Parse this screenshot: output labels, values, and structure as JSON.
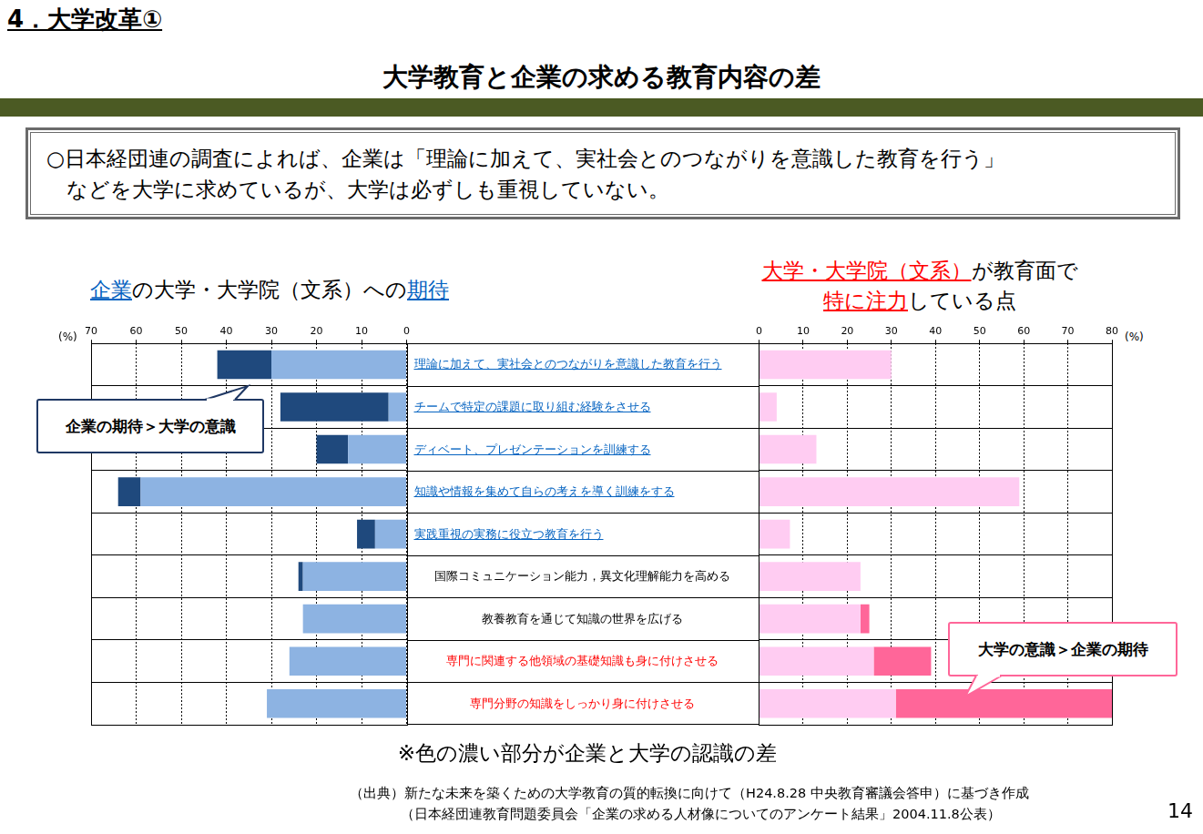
{
  "header": {
    "section": "4．大学改革①",
    "title": "大学教育と企業の求める教育内容の差"
  },
  "summary": [
    "○日本経団連の調査によれば、企業は「理論に加えて、実社会とのつながりを意識した教育を行う」",
    "などを大学に求めているが、大学は必ずしも重視していない。"
  ],
  "chart_titles": [
    [
      [
        {
          "text": "企業",
          "color": "#0563c1",
          "underline": true
        },
        {
          "text": "の大学・大学院（文系）への",
          "color": "#000000",
          "underline": false
        },
        {
          "text": "期待",
          "color": "#0563c1",
          "underline": true
        }
      ]
    ],
    [
      [
        {
          "text": "大学・大学院（文系）",
          "color": "#ff0000",
          "underline": true
        },
        {
          "text": "が教育面で",
          "color": "#000000",
          "underline": false
        }
      ],
      [
        {
          "text": "特に注力",
          "color": "#ff0000",
          "underline": true
        },
        {
          "text": "している点",
          "color": "#000000",
          "underline": false
        }
      ]
    ]
  ],
  "label_column": {
    "styles": [
      {
        "color": "#0563c1",
        "underline": true,
        "align": "left"
      },
      {
        "color": "#0563c1",
        "underline": true,
        "align": "left"
      },
      {
        "color": "#0563c1",
        "underline": true,
        "align": "left"
      },
      {
        "color": "#0563c1",
        "underline": true,
        "align": "left"
      },
      {
        "color": "#0563c1",
        "underline": true,
        "align": "left"
      },
      {
        "color": "#000000",
        "underline": false,
        "align": "center"
      },
      {
        "color": "#000000",
        "underline": false,
        "align": "center"
      },
      {
        "color": "#ff0000",
        "underline": false,
        "align": "center"
      },
      {
        "color": "#ff0000",
        "underline": false,
        "align": "center"
      }
    ]
  },
  "chart_data": [
    {
      "type": "bar",
      "orientation": "horizontal",
      "stacked": true,
      "grid": true,
      "categories": [
        "理論に加えて、実社会とのつながりを意識した教育を行う",
        "チームで特定の課題に取り組む経験をさせる",
        "ディベート、プレゼンテーションを訓練する",
        "知識や情報を集めて自らの考えを導く訓練をする",
        "実践重視の実務に役立つ教育を行う",
        "国際コミュニケーション能力，異文化理解能力を高める",
        "教養教育を通じて知識の世界を広げる",
        "専門に関連する他領域の基礎知識も身に付けさせる",
        "専門分野の知識をしっかり身に付けさせる"
      ],
      "series": [
        {
          "color": "#8db3e2",
          "values": [
            30,
            4,
            13,
            59,
            7,
            23,
            23,
            26,
            31
          ]
        },
        {
          "color": "#1f497d",
          "values": [
            12,
            24,
            7,
            5,
            4,
            1,
            0,
            0,
            0
          ]
        }
      ],
      "xlim": [
        70,
        0
      ],
      "xticks": [
        70,
        60,
        50,
        40,
        30,
        20,
        10,
        0
      ],
      "xlabel": "(%)",
      "annotations": [
        "企業の期待＞大学の意識"
      ]
    },
    {
      "type": "bar",
      "orientation": "horizontal",
      "stacked": true,
      "grid": true,
      "categories": [
        "理論に加えて、実社会とのつながりを意識した教育を行う",
        "チームで特定の課題に取り組む経験をさせる",
        "ディベート、プレゼンテーションを訓練する",
        "知識や情報を集めて自らの考えを導く訓練をする",
        "実践重視の実務に役立つ教育を行う",
        "国際コミュニケーション能力，異文化理解能力を高める",
        "教養教育を通じて知識の世界を広げる",
        "専門に関連する他領域の基礎知識も身に付けさせる",
        "専門分野の知識をしっかり身に付けさせる"
      ],
      "series": [
        {
          "color": "#ffccf2",
          "values": [
            30,
            4,
            13,
            59,
            7,
            23,
            23,
            26,
            31
          ]
        },
        {
          "color": "#ff6699",
          "values": [
            0,
            0,
            0,
            0,
            0,
            0,
            2,
            13,
            49
          ]
        }
      ],
      "xlim": [
        0,
        80
      ],
      "xticks": [
        0,
        10,
        20,
        30,
        40,
        50,
        60,
        70,
        80
      ],
      "xlabel": "(%)",
      "annotations": [
        "大学の意識＞企業の期待"
      ]
    }
  ],
  "note": "※色の濃い部分が企業と大学の認識の差",
  "source": [
    "（出典）新たな未来を築くための大学教育の質的転換に向けて（H24.8.28 中央教育審議会答申）に基づき作成",
    "（日本経団連教育問題委員会「企業の求める人材像についてのアンケート結果」2004.11.8公表）"
  ],
  "page_number": "14"
}
